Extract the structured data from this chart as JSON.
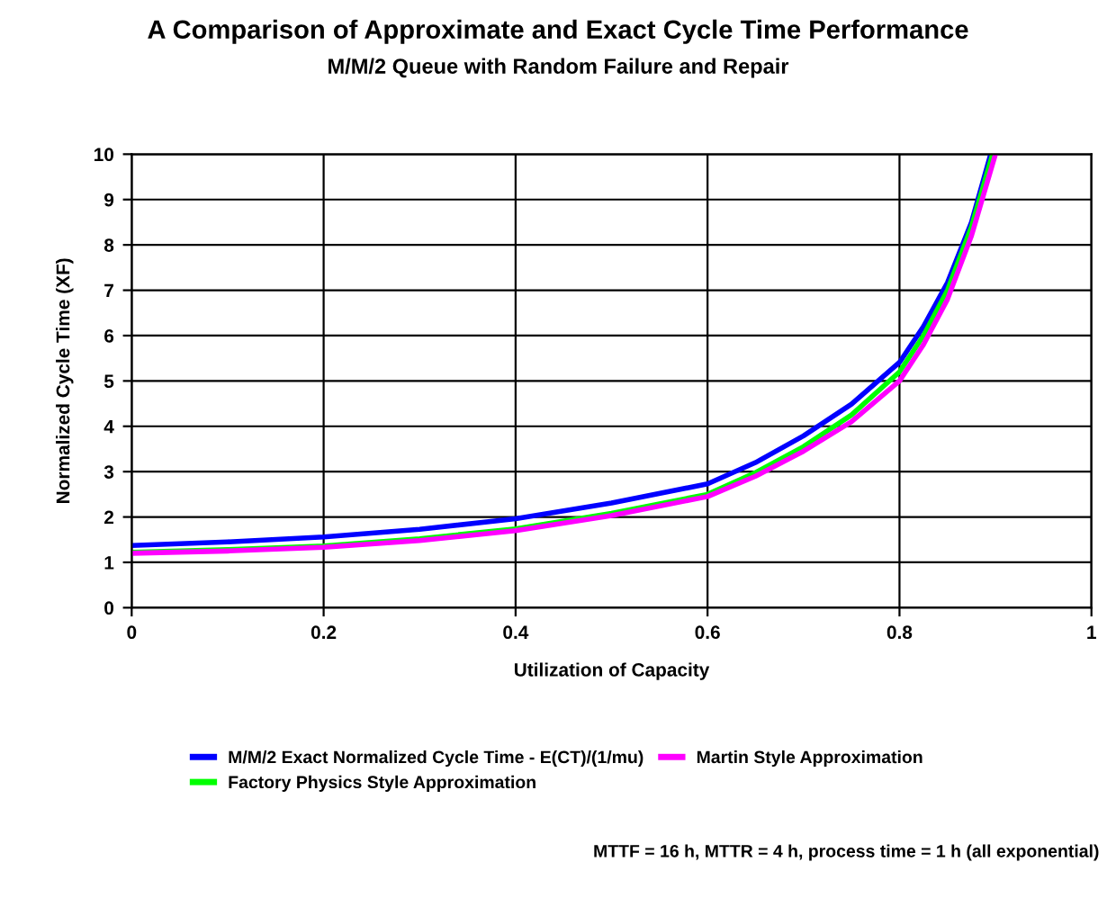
{
  "chart_data": {
    "type": "line",
    "title": "A Comparison of Approximate and Exact Cycle Time Performance",
    "subtitle": "M/M/2 Queue with Random Failure and Repair",
    "xlabel": "Utilization of Capacity",
    "ylabel": "Normalized Cycle Time (XF)",
    "xlim": [
      0,
      1
    ],
    "xticks": [
      0,
      0.2,
      0.4,
      0.6,
      0.8,
      1
    ],
    "ylim": [
      0,
      10
    ],
    "yticks": [
      0,
      1,
      2,
      3,
      4,
      5,
      6,
      7,
      8,
      9,
      10
    ],
    "grid": true,
    "legend": "bottom",
    "marker": "none",
    "line_style": "solid",
    "series": [
      {
        "name": "M/M/2 Exact Normalized Cycle Time - E(CT)/(1/mu)",
        "color": "#0000ff",
        "x": [
          0,
          0.1,
          0.2,
          0.3,
          0.4,
          0.5,
          0.6,
          0.65,
          0.7,
          0.75,
          0.8,
          0.825,
          0.85,
          0.875,
          0.895
        ],
        "values": [
          1.37,
          1.45,
          1.56,
          1.73,
          1.96,
          2.31,
          2.73,
          3.2,
          3.79,
          4.49,
          5.41,
          6.2,
          7.17,
          8.5,
          10
        ]
      },
      {
        "name": "Factory Physics Style Approximation",
        "color": "#00ff00",
        "x": [
          0,
          0.1,
          0.2,
          0.3,
          0.4,
          0.5,
          0.6,
          0.65,
          0.7,
          0.75,
          0.8,
          0.825,
          0.85,
          0.875,
          0.897
        ],
        "values": [
          1.22,
          1.28,
          1.36,
          1.52,
          1.74,
          2.08,
          2.5,
          2.98,
          3.55,
          4.25,
          5.2,
          6.0,
          7.0,
          8.4,
          10
        ]
      },
      {
        "name": "Martin Style Approximation",
        "color": "#ff00ff",
        "x": [
          0,
          0.1,
          0.2,
          0.3,
          0.4,
          0.5,
          0.6,
          0.65,
          0.7,
          0.75,
          0.8,
          0.825,
          0.85,
          0.875,
          0.9
        ],
        "values": [
          1.2,
          1.25,
          1.33,
          1.48,
          1.7,
          2.03,
          2.45,
          2.9,
          3.45,
          4.1,
          5.0,
          5.8,
          6.8,
          8.2,
          10
        ]
      }
    ],
    "annotations": [
      "MTTF = 16 h, MTTR = 4 h, process time = 1 h (all exponential)"
    ]
  }
}
